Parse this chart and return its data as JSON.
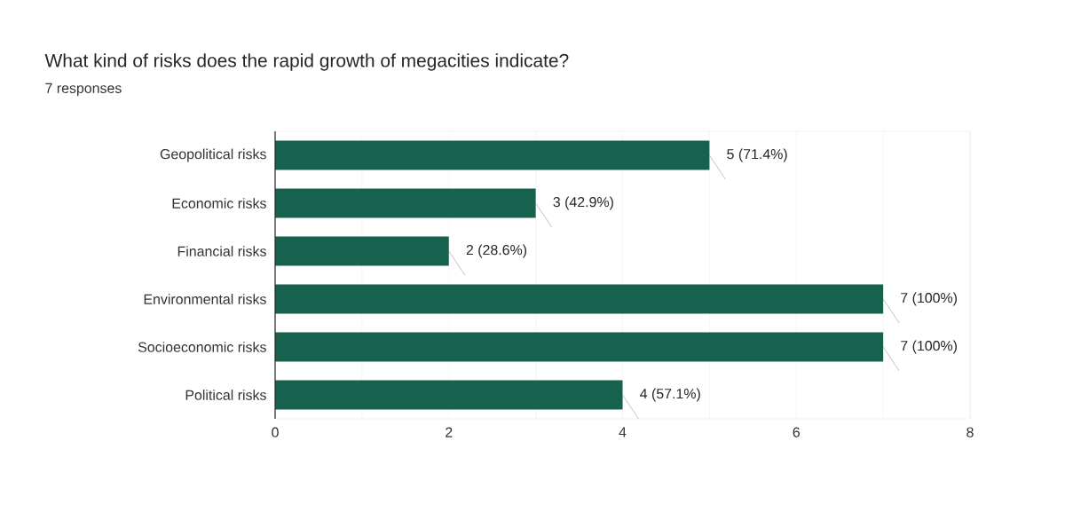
{
  "chart_data": {
    "type": "bar",
    "orientation": "horizontal",
    "title": "What kind of risks does the rapid growth of megacities indicate?",
    "subtitle": "7 responses",
    "categories": [
      "Geopolitical risks",
      "Economic risks",
      "Financial risks",
      "Environmental risks",
      "Socioeconomic risks",
      "Political risks"
    ],
    "values": [
      5,
      3,
      2,
      7,
      7,
      4
    ],
    "value_labels": [
      "5 (71.4%)",
      "3 (42.9%)",
      "2 (28.6%)",
      "7 (100%)",
      "7 (100%)",
      "4 (57.1%)"
    ],
    "color": "#17624e",
    "xlim": [
      0,
      8
    ],
    "xticks": [
      0,
      {
        "value": 1,
        "label": null
      },
      2,
      {
        "value": 3,
        "label": null
      },
      4,
      {
        "value": 5,
        "label": null
      },
      6,
      {
        "value": 7,
        "label": null
      },
      8
    ],
    "grid": "x"
  }
}
